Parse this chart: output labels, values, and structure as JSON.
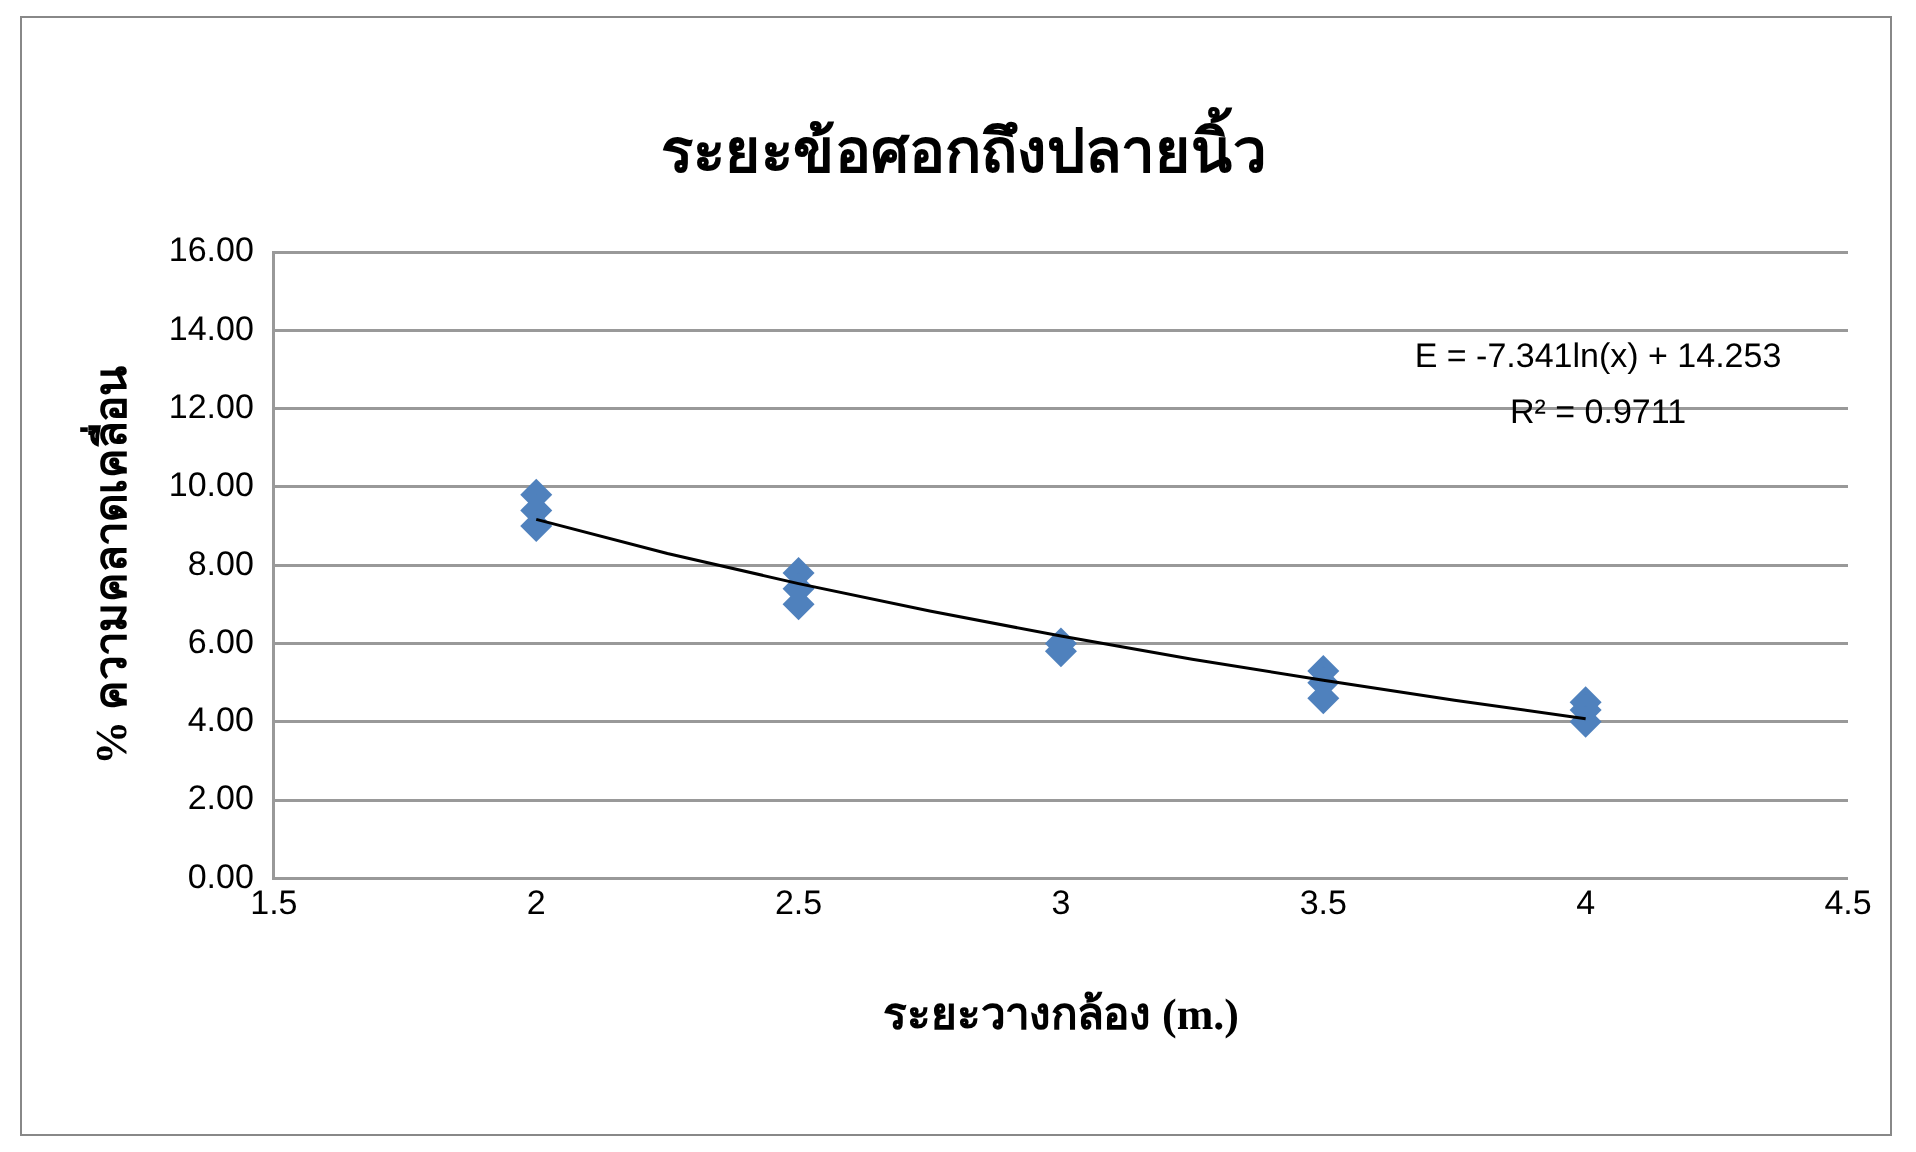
{
  "chart_data": {
    "type": "scatter",
    "title": "ระยะข้อศอกถึงปลายนิ้ว",
    "xlabel": "ระยะวางกล้อง (m.)",
    "ylabel": "% ความคลาดเคลื่อน",
    "annotations": [
      "E = -7.341ln(x) + 14.253",
      "R² = 0.9711"
    ],
    "series": [
      {
        "color": "#4f81bd",
        "x": [
          2,
          2,
          2,
          2.5,
          2.5,
          2.5,
          3,
          3,
          3.5,
          3.5,
          3.5,
          4,
          4,
          4
        ],
        "values": [
          9.8,
          9.4,
          9.0,
          7.8,
          7.4,
          7.0,
          6.0,
          5.8,
          5.3,
          5.0,
          4.6,
          4.5,
          4.3,
          4.0
        ]
      },
      {
        "type": "line",
        "color": "#000000",
        "marker": "none",
        "line_style": "solid",
        "x": [
          2,
          2.25,
          2.5,
          2.75,
          3,
          3.25,
          3.5,
          3.75,
          4
        ],
        "values": [
          9.17,
          8.3,
          7.53,
          6.83,
          6.19,
          5.6,
          5.06,
          4.55,
          4.08
        ]
      }
    ],
    "xlim": [
      1.5,
      4.5
    ],
    "xticks": [
      1.5,
      2,
      2.5,
      3,
      3.5,
      4,
      4.5
    ],
    "ylim": [
      0,
      16
    ],
    "yticks": [
      {
        "value": 0,
        "label": "0.00"
      },
      {
        "value": 2,
        "label": "2.00"
      },
      {
        "value": 4,
        "label": "4.00"
      },
      {
        "value": 6,
        "label": "6.00"
      },
      {
        "value": 8,
        "label": "8.00"
      },
      {
        "value": 10,
        "label": "10.00"
      },
      {
        "value": 12,
        "label": "12.00"
      },
      {
        "value": 14,
        "label": "14.00"
      },
      {
        "value": 16,
        "label": "16.00"
      }
    ],
    "grid": "y",
    "legend": false,
    "marker": "diamond"
  }
}
